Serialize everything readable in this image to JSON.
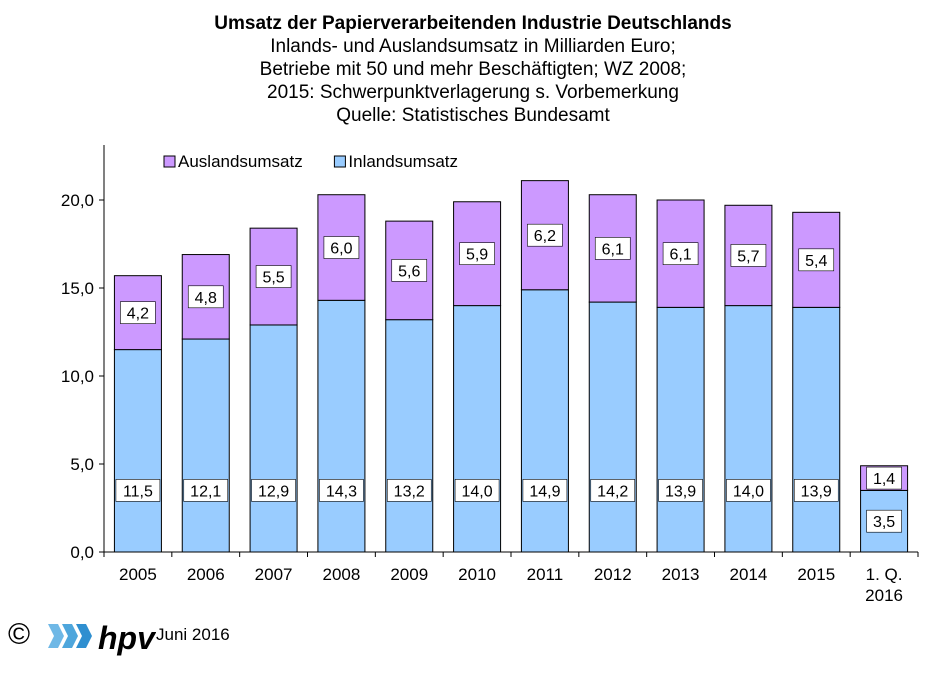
{
  "title": "Umsatz der Papierverarbeitenden Industrie Deutschlands",
  "subtitle_lines": [
    "Inlands- und Auslandsumsatz in Milliarden Euro;",
    "Betriebe mit 50 und mehr Beschäftigten; WZ 2008;",
    "2015: Schwerpunktverlagerung s. Vorbemerkung",
    "Quelle: Statistisches Bundesamt"
  ],
  "footer": {
    "copyright": "©",
    "logo_text": "hpv",
    "date": "Juni 2016"
  },
  "colors": {
    "inland": "#99ccff",
    "ausland": "#cc99ff",
    "border": "#000000"
  },
  "chart_data": {
    "type": "bar",
    "stacked": true,
    "categories": [
      "2005",
      "2006",
      "2007",
      "2008",
      "2009",
      "2010",
      "2011",
      "2012",
      "2013",
      "2014",
      "2015",
      "1. Q.\n2016"
    ],
    "series": [
      {
        "name": "Inlandsumsatz",
        "values": [
          11.5,
          12.1,
          12.9,
          14.3,
          13.2,
          14.0,
          14.9,
          14.2,
          13.9,
          14.0,
          13.9,
          3.5
        ],
        "labels": [
          "11,5",
          "12,1",
          "12,9",
          "14,3",
          "13,2",
          "14,0",
          "14,9",
          "14,2",
          "13,9",
          "14,0",
          "13,9",
          "3,5"
        ]
      },
      {
        "name": "Auslandsumsatz",
        "values": [
          4.2,
          4.8,
          5.5,
          6.0,
          5.6,
          5.9,
          6.2,
          6.1,
          6.1,
          5.7,
          5.4,
          1.4
        ],
        "labels": [
          "4,2",
          "4,8",
          "5,5",
          "6,0",
          "5,6",
          "5,9",
          "6,2",
          "6,1",
          "6,1",
          "5,7",
          "5,4",
          "1,4"
        ]
      }
    ],
    "legend_order": [
      "Auslandsumsatz",
      "Inlandsumsatz"
    ],
    "legend_position": "top-left",
    "ylim": [
      0,
      23
    ],
    "yticks": [
      0,
      5,
      10,
      15,
      20
    ],
    "ytick_labels": [
      "0,0",
      "5,0",
      "10,0",
      "15,0",
      "20,0"
    ],
    "grid": false
  }
}
